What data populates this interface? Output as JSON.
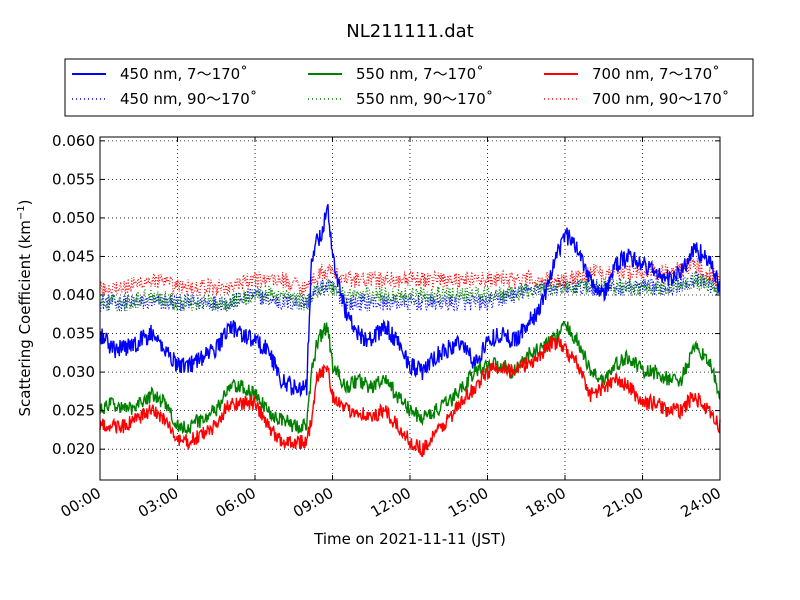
{
  "chart_data": {
    "type": "line",
    "title": "NL211111.dat",
    "xlabel": "Time on 2021-11-11 (JST)",
    "ylabel": "Scattering Coefficient (km",
    "ylabel_sup": "−1",
    "ylabel_close": ")",
    "xlim": [
      0,
      24
    ],
    "ylim": [
      0.016,
      0.0605
    ],
    "xticks": [
      0,
      3,
      6,
      9,
      12,
      15,
      18,
      21,
      24
    ],
    "xtick_labels": [
      "00:00",
      "03:00",
      "06:00",
      "09:00",
      "12:00",
      "15:00",
      "18:00",
      "21:00",
      "24:00"
    ],
    "yticks": [
      0.02,
      0.025,
      0.03,
      0.035,
      0.04,
      0.045,
      0.05,
      0.055,
      0.06
    ],
    "ytick_labels": [
      "0.020",
      "0.025",
      "0.030",
      "0.035",
      "0.040",
      "0.045",
      "0.050",
      "0.055",
      "0.060"
    ],
    "grid": true,
    "legend_position": "top-center",
    "series": [
      {
        "name": "450 nm, 7～170˚",
        "color": "#0000ff",
        "style": "solid",
        "noise": 0.0012,
        "x": [
          0,
          0.5,
          1,
          1.5,
          2,
          2.5,
          3,
          3.5,
          4,
          4.5,
          5,
          5.5,
          6,
          6.5,
          7,
          7.5,
          8,
          8.2,
          8.4,
          8.6,
          8.8,
          9,
          9.5,
          10,
          10.5,
          11,
          11.5,
          12,
          12.5,
          13,
          13.5,
          14,
          14.5,
          15,
          15.5,
          16,
          16.5,
          17,
          17.5,
          18,
          18.5,
          19,
          19.5,
          20,
          20.5,
          21,
          21.5,
          22,
          22.5,
          23,
          23.5,
          24
        ],
        "y": [
          0.035,
          0.033,
          0.033,
          0.034,
          0.035,
          0.033,
          0.031,
          0.031,
          0.032,
          0.033,
          0.036,
          0.035,
          0.034,
          0.033,
          0.029,
          0.028,
          0.028,
          0.045,
          0.047,
          0.048,
          0.052,
          0.045,
          0.038,
          0.035,
          0.034,
          0.036,
          0.034,
          0.031,
          0.03,
          0.032,
          0.033,
          0.034,
          0.031,
          0.034,
          0.035,
          0.034,
          0.036,
          0.038,
          0.043,
          0.048,
          0.046,
          0.042,
          0.04,
          0.044,
          0.045,
          0.044,
          0.043,
          0.042,
          0.043,
          0.046,
          0.045,
          0.041
        ]
      },
      {
        "name": "450 nm, 90～170˚",
        "color": "#0000ff",
        "style": "dotted",
        "noise": 0.0011,
        "x": [
          0,
          1,
          2,
          3,
          4,
          5,
          6,
          7,
          8,
          8.5,
          9,
          9.5,
          10,
          11,
          12,
          13,
          14,
          15,
          16,
          17,
          18,
          19,
          20,
          21,
          22,
          23,
          24
        ],
        "y": [
          0.039,
          0.039,
          0.039,
          0.039,
          0.039,
          0.039,
          0.04,
          0.039,
          0.039,
          0.041,
          0.041,
          0.039,
          0.039,
          0.039,
          0.039,
          0.039,
          0.039,
          0.039,
          0.04,
          0.041,
          0.041,
          0.041,
          0.041,
          0.041,
          0.041,
          0.042,
          0.041
        ]
      },
      {
        "name": "550 nm, 7～170˚",
        "color": "#008000",
        "style": "solid",
        "noise": 0.001,
        "x": [
          0,
          0.5,
          1,
          1.5,
          2,
          2.5,
          3,
          3.5,
          4,
          4.5,
          5,
          5.5,
          6,
          6.5,
          7,
          7.5,
          8,
          8.2,
          8.4,
          8.6,
          8.8,
          9,
          9.5,
          10,
          10.5,
          11,
          11.5,
          12,
          12.5,
          13,
          13.5,
          14,
          14.5,
          15,
          15.5,
          16,
          16.5,
          17,
          17.5,
          18,
          18.5,
          19,
          19.5,
          20,
          20.5,
          21,
          21.5,
          22,
          22.5,
          23,
          23.5,
          24
        ],
        "y": [
          0.025,
          0.026,
          0.025,
          0.026,
          0.027,
          0.026,
          0.023,
          0.023,
          0.024,
          0.025,
          0.028,
          0.028,
          0.027,
          0.025,
          0.024,
          0.023,
          0.023,
          0.03,
          0.034,
          0.035,
          0.036,
          0.031,
          0.028,
          0.029,
          0.028,
          0.029,
          0.027,
          0.025,
          0.024,
          0.025,
          0.026,
          0.028,
          0.03,
          0.031,
          0.031,
          0.03,
          0.032,
          0.033,
          0.034,
          0.036,
          0.034,
          0.03,
          0.029,
          0.031,
          0.032,
          0.03,
          0.03,
          0.029,
          0.029,
          0.033,
          0.032,
          0.027
        ]
      },
      {
        "name": "550 nm, 90～170˚",
        "color": "#008000",
        "style": "dotted",
        "noise": 0.0011,
        "x": [
          0,
          1,
          2,
          3,
          4,
          5,
          6,
          7,
          8,
          8.5,
          9,
          9.5,
          10,
          11,
          12,
          13,
          14,
          15,
          16,
          17,
          18,
          19,
          20,
          21,
          22,
          23,
          24
        ],
        "y": [
          0.039,
          0.039,
          0.04,
          0.039,
          0.039,
          0.039,
          0.04,
          0.04,
          0.039,
          0.041,
          0.041,
          0.04,
          0.04,
          0.04,
          0.04,
          0.04,
          0.04,
          0.04,
          0.04,
          0.041,
          0.041,
          0.041,
          0.041,
          0.041,
          0.041,
          0.042,
          0.041
        ]
      },
      {
        "name": "700 nm, 7～170˚",
        "color": "#ff0000",
        "style": "solid",
        "noise": 0.001,
        "x": [
          0,
          0.5,
          1,
          1.5,
          2,
          2.5,
          3,
          3.5,
          4,
          4.5,
          5,
          5.5,
          6,
          6.5,
          7,
          7.5,
          8,
          8.2,
          8.4,
          8.6,
          8.8,
          9,
          9.5,
          10,
          10.5,
          11,
          11.5,
          12,
          12.5,
          13,
          13.5,
          14,
          14.5,
          15,
          15.5,
          16,
          16.5,
          17,
          17.5,
          18,
          18.5,
          19,
          19.5,
          20,
          20.5,
          21,
          21.5,
          22,
          22.5,
          23,
          23.5,
          24
        ],
        "y": [
          0.023,
          0.023,
          0.023,
          0.024,
          0.025,
          0.024,
          0.021,
          0.021,
          0.022,
          0.023,
          0.026,
          0.026,
          0.026,
          0.023,
          0.021,
          0.021,
          0.021,
          0.024,
          0.029,
          0.03,
          0.031,
          0.027,
          0.025,
          0.025,
          0.024,
          0.025,
          0.023,
          0.021,
          0.02,
          0.022,
          0.024,
          0.026,
          0.028,
          0.03,
          0.031,
          0.03,
          0.031,
          0.032,
          0.034,
          0.033,
          0.031,
          0.027,
          0.028,
          0.029,
          0.028,
          0.026,
          0.026,
          0.025,
          0.025,
          0.027,
          0.025,
          0.023
        ]
      },
      {
        "name": "700 nm, 90～170˚",
        "color": "#ff0000",
        "style": "dotted",
        "noise": 0.0011,
        "x": [
          0,
          1,
          2,
          3,
          4,
          5,
          6,
          7,
          8,
          8.5,
          9,
          9.5,
          10,
          11,
          12,
          13,
          14,
          15,
          16,
          17,
          18,
          19,
          20,
          21,
          22,
          23,
          24
        ],
        "y": [
          0.041,
          0.041,
          0.042,
          0.041,
          0.041,
          0.041,
          0.042,
          0.042,
          0.041,
          0.043,
          0.043,
          0.042,
          0.042,
          0.042,
          0.042,
          0.042,
          0.042,
          0.042,
          0.042,
          0.042,
          0.042,
          0.043,
          0.043,
          0.043,
          0.043,
          0.044,
          0.042
        ]
      }
    ]
  }
}
